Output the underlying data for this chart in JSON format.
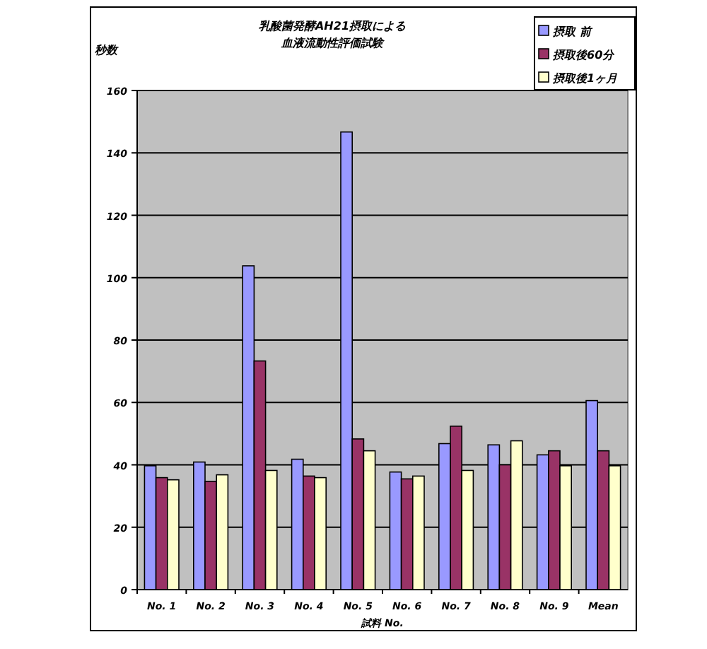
{
  "chart_data": {
    "type": "bar",
    "title": "乳酸菌発酵AH21摂取による",
    "subtitle": "血液流動性評価試験",
    "ylabel": "秒数",
    "xlabel": "試料 No.",
    "categories": [
      "No. 1",
      "No. 2",
      "No. 3",
      "No. 4",
      "No. 5",
      "No. 6",
      "No. 7",
      "No. 8",
      "No. 9",
      "Mean"
    ],
    "series": [
      {
        "name": "摂取 前",
        "color": "#9999ff",
        "values": [
          39.7,
          40.9,
          103.8,
          41.8,
          146.7,
          37.7,
          46.8,
          46.4,
          43.2,
          60.6
        ]
      },
      {
        "name": "摂取後60分",
        "color": "#993366",
        "values": [
          35.9,
          34.7,
          73.3,
          36.4,
          48.3,
          35.5,
          52.4,
          40.0,
          44.5,
          44.5
        ]
      },
      {
        "name": "摂取後1ヶ月",
        "color": "#ffffcc",
        "values": [
          35.2,
          36.8,
          38.2,
          35.9,
          44.5,
          36.4,
          38.2,
          47.7,
          39.7,
          39.7
        ]
      }
    ],
    "ylim": [
      0,
      160
    ],
    "yticks": [
      0,
      20,
      40,
      60,
      80,
      100,
      120,
      140,
      160
    ],
    "grid": "y",
    "legend": "top right"
  }
}
